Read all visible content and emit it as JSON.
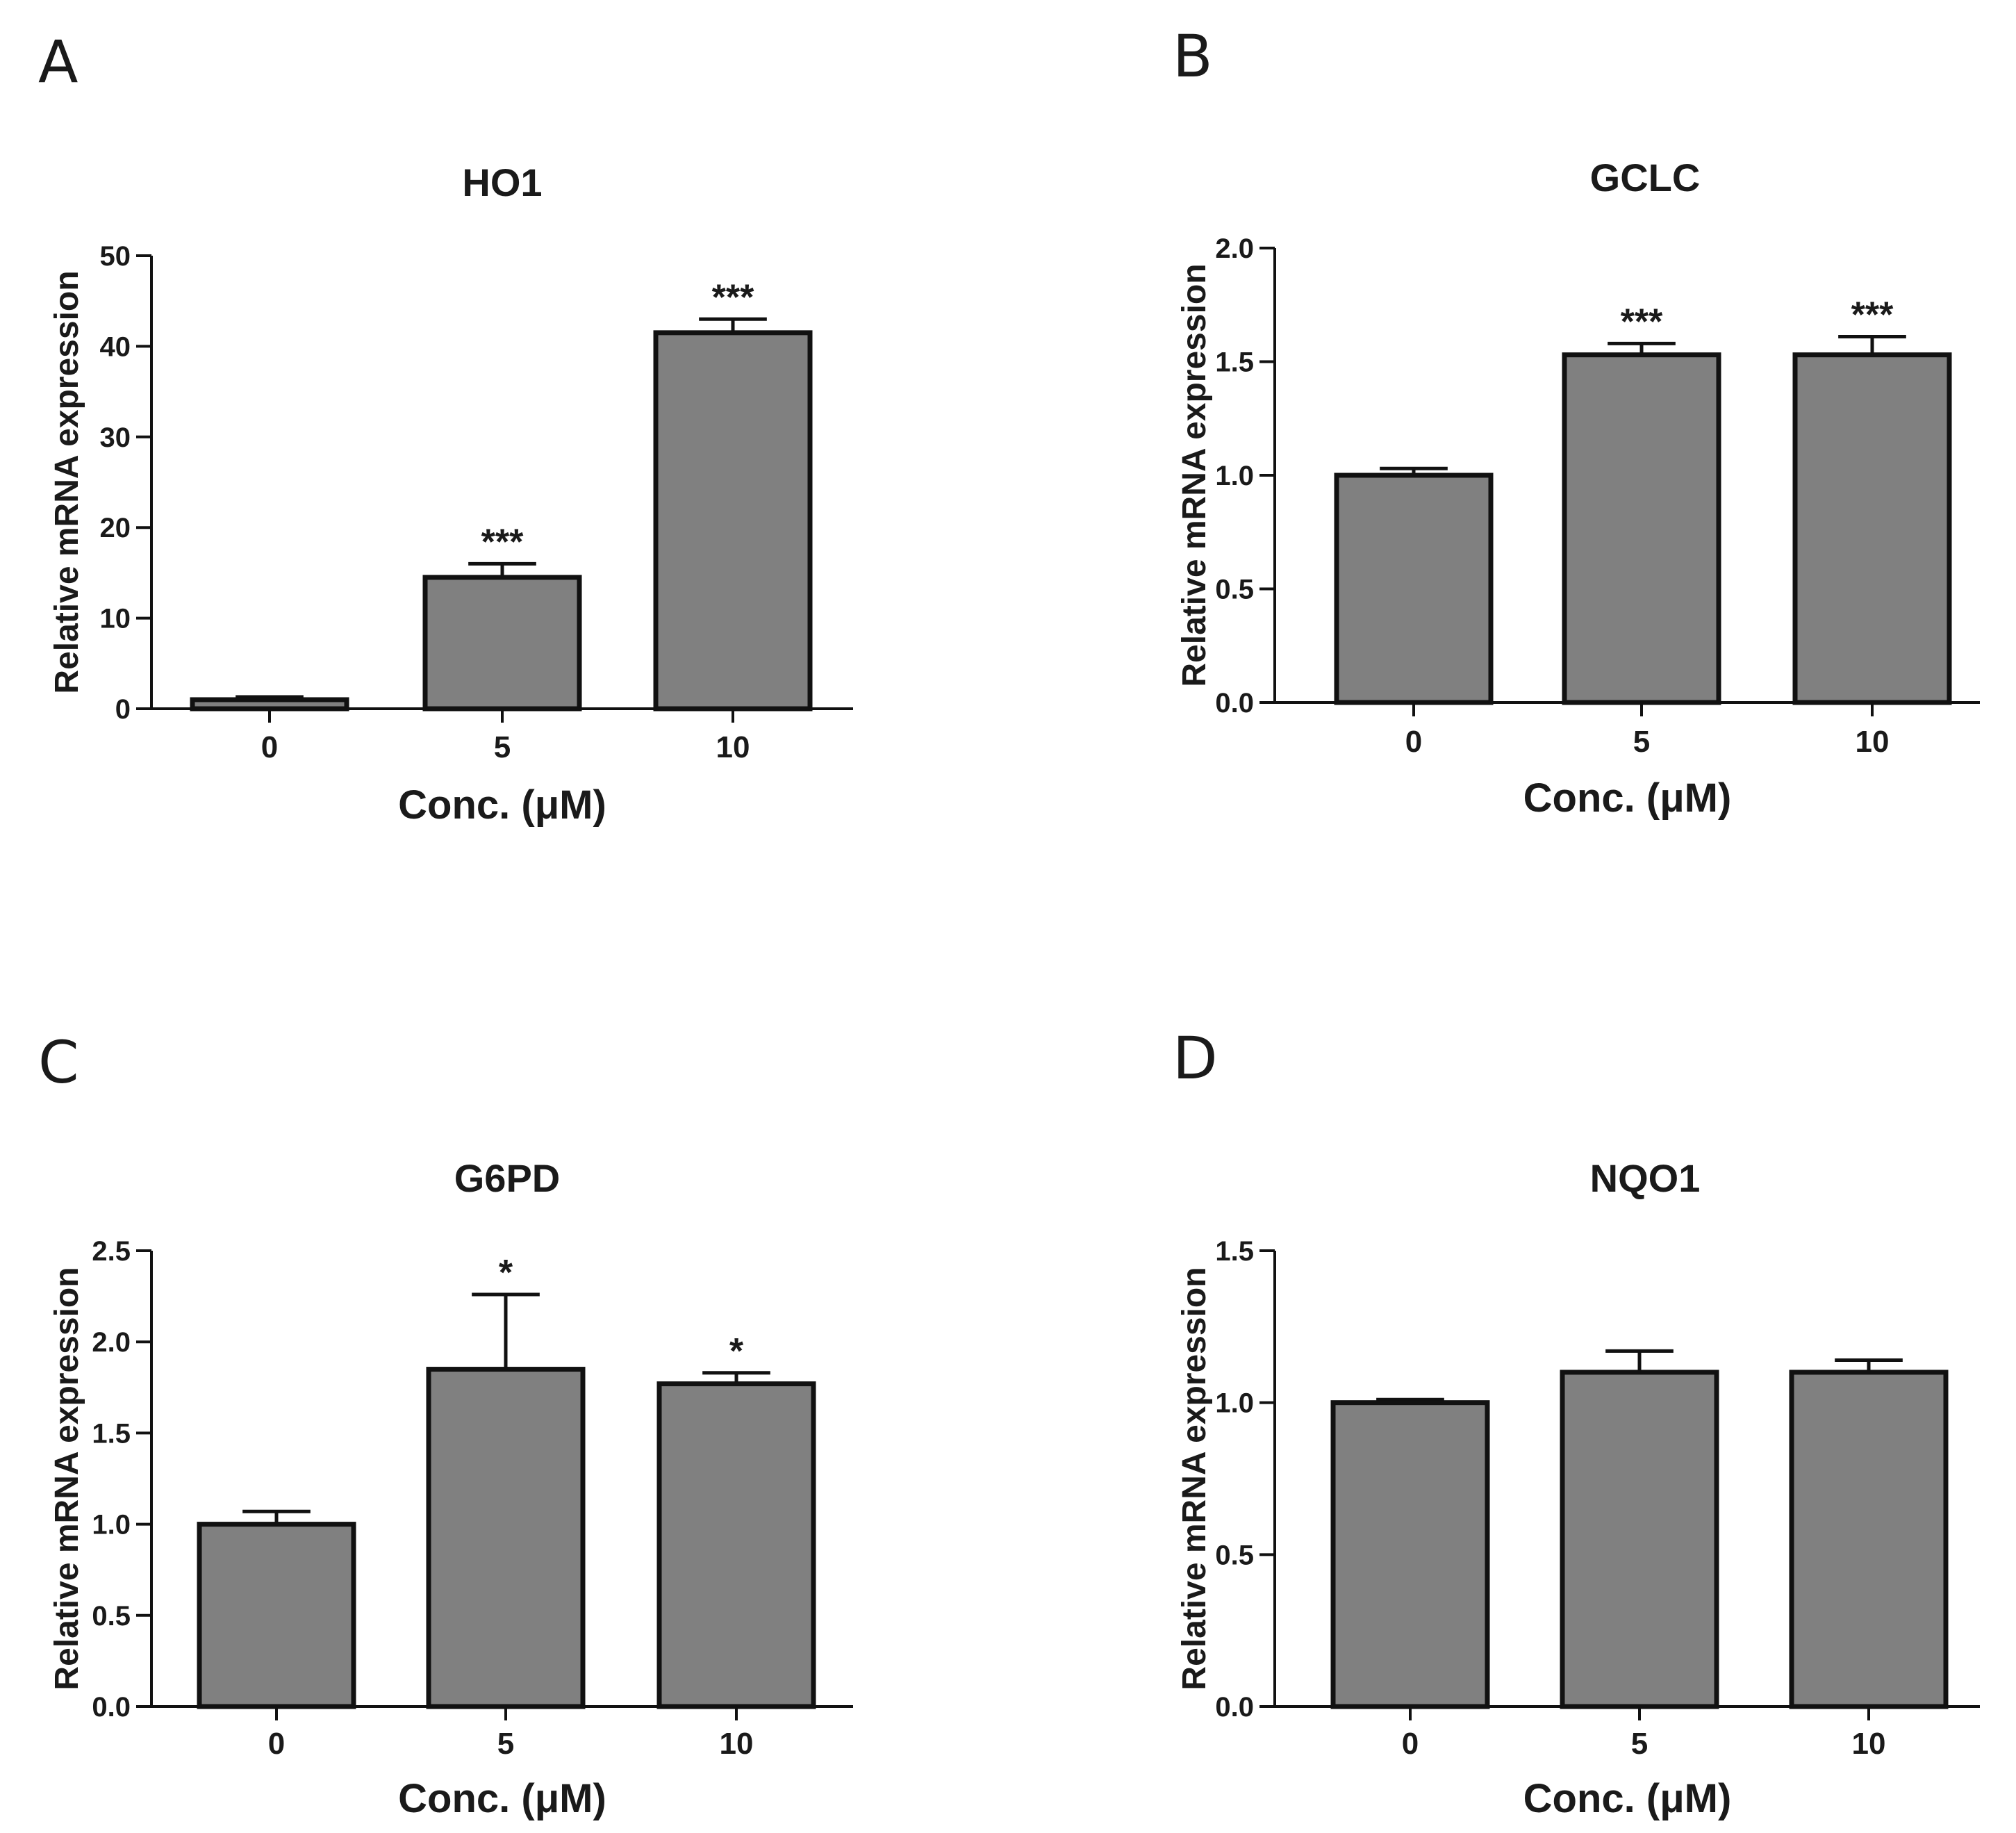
{
  "chart_data": [
    {
      "panel": "A",
      "type": "bar",
      "title": "HO1",
      "xlabel": "Conc. (μM)",
      "ylabel": "Relative mRNA expression",
      "categories": [
        "0",
        "5",
        "10"
      ],
      "values": [
        1.0,
        14.5,
        41.5
      ],
      "errors": [
        0.3,
        1.5,
        1.5
      ],
      "significance": [
        "",
        "***",
        "***"
      ],
      "ylim": [
        0,
        50
      ],
      "yticks": [
        0,
        10,
        20,
        30,
        40,
        50
      ],
      "ytick_labels": [
        "0",
        "10",
        "20",
        "30",
        "40",
        "50"
      ]
    },
    {
      "panel": "B",
      "type": "bar",
      "title": "GCLC",
      "xlabel": "Conc. (μM)",
      "ylabel": "Relative mRNA expression",
      "categories": [
        "0",
        "5",
        "10"
      ],
      "values": [
        1.0,
        1.53,
        1.53
      ],
      "errors": [
        0.03,
        0.05,
        0.08
      ],
      "significance": [
        "",
        "***",
        "***"
      ],
      "ylim": [
        0,
        2.0
      ],
      "yticks": [
        0,
        0.5,
        1.0,
        1.5,
        2.0
      ],
      "ytick_labels": [
        "0.0",
        "0.5",
        "1.0",
        "1.5",
        "2.0"
      ]
    },
    {
      "panel": "C",
      "type": "bar",
      "title": "G6PD",
      "xlabel": "Conc. (μM)",
      "ylabel": "Relative mRNA expression",
      "categories": [
        "0",
        "5",
        "10"
      ],
      "values": [
        1.0,
        1.85,
        1.77
      ],
      "errors": [
        0.07,
        0.41,
        0.06
      ],
      "significance": [
        "",
        "*",
        "*"
      ],
      "ylim": [
        0,
        2.5
      ],
      "yticks": [
        0,
        0.5,
        1.0,
        1.5,
        2.0,
        2.5
      ],
      "ytick_labels": [
        "0.0",
        "0.5",
        "1.0",
        "1.5",
        "2.0",
        "2.5"
      ]
    },
    {
      "panel": "D",
      "type": "bar",
      "title": "NQO1",
      "xlabel": "Conc. (μM)",
      "ylabel": "Relative mRNA expression",
      "categories": [
        "0",
        "5",
        "10"
      ],
      "values": [
        1.0,
        1.1,
        1.1
      ],
      "errors": [
        0.01,
        0.07,
        0.04
      ],
      "significance": [
        "",
        "",
        ""
      ],
      "ylim": [
        0,
        1.5
      ],
      "yticks": [
        0,
        0.5,
        1.0,
        1.5
      ],
      "ytick_labels": [
        "0.0",
        "0.5",
        "1.0",
        "1.5"
      ]
    }
  ],
  "colors": {
    "bar_fill": "#808080",
    "stroke": "#111111",
    "text": "#1a1a1a"
  }
}
